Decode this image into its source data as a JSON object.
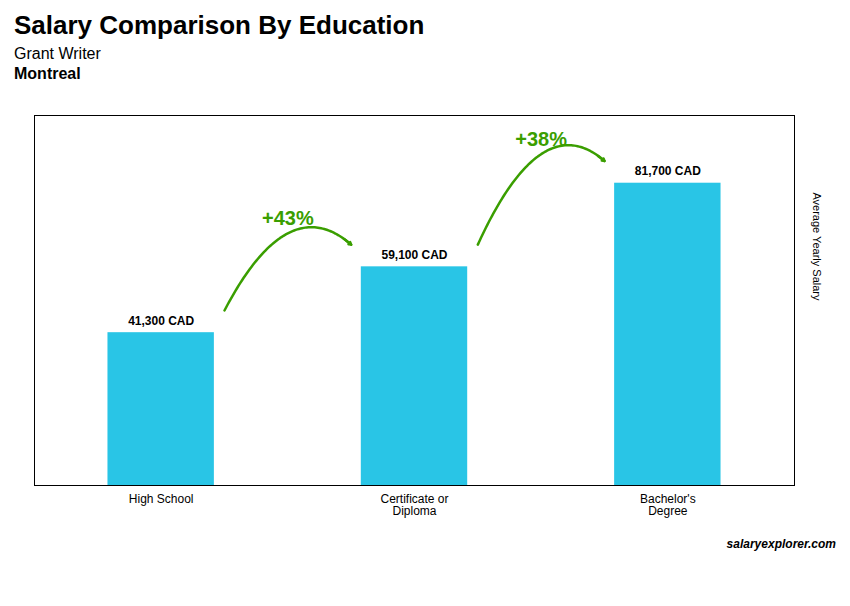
{
  "chart_data": {
    "type": "bar",
    "title": "Salary Comparison By Education",
    "subtitle": [
      "Grant Writer",
      "Montreal"
    ],
    "caption": "salaryexplorer.com",
    "categories": [
      "High School",
      "Certificate or\nDiploma",
      "Bachelor's\nDegree"
    ],
    "values": [
      41300,
      59100,
      81700
    ],
    "value_labels": [
      "41,300 CAD",
      "59,100 CAD",
      "81,700 CAD"
    ],
    "data_labels": true,
    "color": "#29c5e6",
    "ylabel": "Average Yearly Salary",
    "ylim": [
      0,
      100000
    ],
    "tick_labels": "x",
    "grid": false,
    "annotations": [
      "+43%",
      "+38%"
    ]
  }
}
